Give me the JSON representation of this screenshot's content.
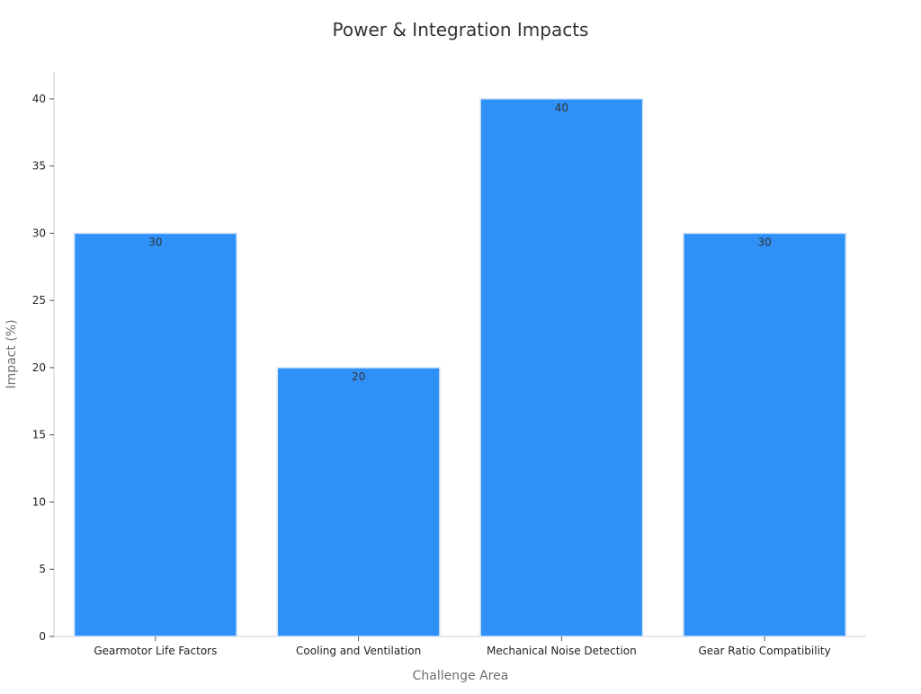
{
  "chart_data": {
    "type": "bar",
    "title": "Power & Integration Impacts",
    "xlabel": "Challenge Area",
    "ylabel": "Impact (%)",
    "categories": [
      "Gearmotor Life Factors",
      "Cooling and Ventilation",
      "Mechanical Noise Detection",
      "Gear Ratio Compatibility"
    ],
    "values": [
      30,
      20,
      40,
      30
    ],
    "data_labels": [
      "30",
      "20",
      "40",
      "30"
    ],
    "ylim": [
      0,
      42
    ],
    "yticks": [
      0,
      5,
      10,
      15,
      20,
      25,
      30,
      35,
      40
    ],
    "grid": false,
    "legend": "none",
    "colors": {
      "bar": "#2f91f7",
      "bar_edge": "#d6e6f7",
      "axis": "#cccccc",
      "title": "#333333",
      "axis_title": "#707070",
      "tick_label": "#222222"
    }
  }
}
